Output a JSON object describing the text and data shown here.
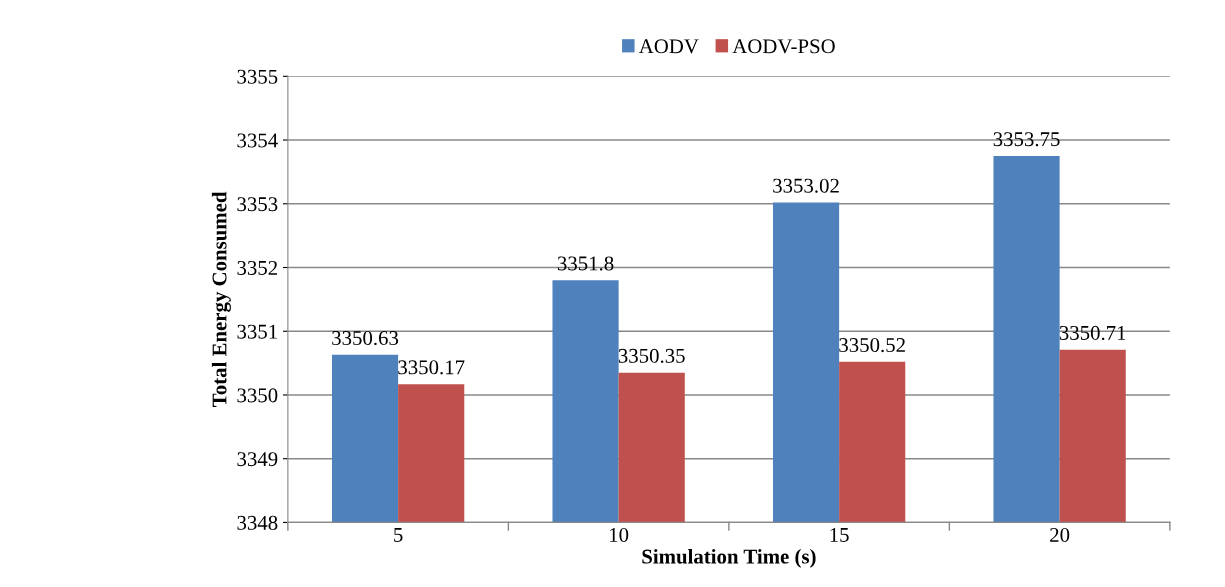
{
  "chart_data": {
    "type": "bar",
    "xlabel": "Simulation Time (s)",
    "ylabel": "Total Energy Consumed",
    "categories": [
      "5",
      "10",
      "15",
      "20"
    ],
    "series": [
      {
        "name": "AODV",
        "color": "#4f81bd",
        "values": [
          3350.63,
          3351.8,
          3353.02,
          3353.75
        ]
      },
      {
        "name": "AODV-PSO",
        "color": "#c0504d",
        "values": [
          3350.17,
          3350.35,
          3350.52,
          3350.71
        ]
      }
    ],
    "ylim": [
      3348,
      3355
    ],
    "yticks": [
      3348,
      3349,
      3350,
      3351,
      3352,
      3353,
      3354,
      3355
    ],
    "grid": "y",
    "legend": "top",
    "data_labels": true
  }
}
